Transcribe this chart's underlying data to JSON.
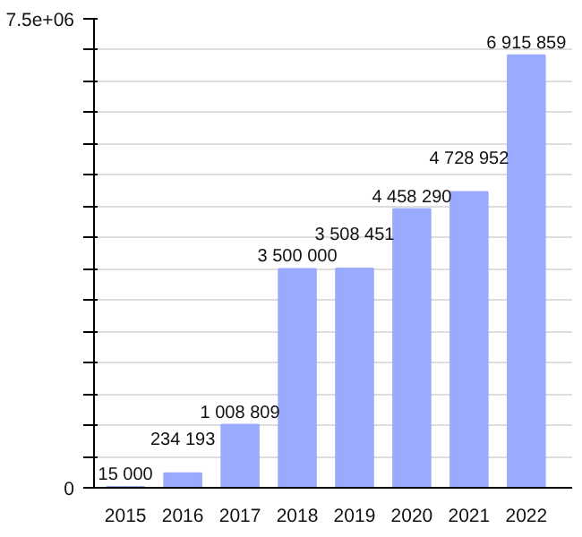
{
  "chart_data": {
    "type": "bar",
    "categories": [
      "2015",
      "2016",
      "2017",
      "2018",
      "2019",
      "2020",
      "2021",
      "2022"
    ],
    "values": [
      15000,
      234193,
      1008809,
      3500000,
      3508451,
      4458290,
      4728952,
      6915859
    ],
    "value_labels": [
      "15 000",
      "234 193",
      "1 008 809",
      "3 500 000",
      "3 508 451",
      "4 458 290",
      "4 728 952",
      "6 915 859"
    ],
    "color": "#99aaff",
    "ylim": [
      0,
      7500000
    ],
    "yticks": [
      0,
      {
        "value": 500000,
        "label": null
      },
      {
        "value": 1000000,
        "label": null
      },
      {
        "value": 1500000,
        "label": null
      },
      {
        "value": 2000000,
        "label": null
      },
      {
        "value": 2500000,
        "label": null
      },
      {
        "value": 3000000,
        "label": null
      },
      {
        "value": 3500000,
        "label": null
      },
      {
        "value": 4000000,
        "label": null
      },
      {
        "value": 4500000,
        "label": null
      },
      {
        "value": 5000000,
        "label": null
      },
      {
        "value": 5500000,
        "label": null
      },
      {
        "value": 6000000,
        "label": null
      },
      {
        "value": 6500000,
        "label": null
      },
      {
        "value": 7000000,
        "label": null
      },
      {
        "value": 7500000,
        "label": "7.5e+06"
      }
    ],
    "grid": "y"
  }
}
